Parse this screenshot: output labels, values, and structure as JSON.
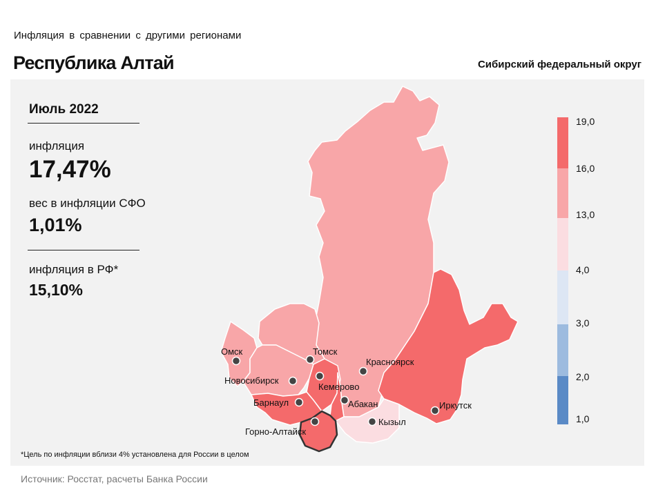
{
  "header": {
    "subtitle": "Инфляция  в сравнении  с другими  регионами",
    "region": "Республика Алтай",
    "district": "Сибирский федеральный округ"
  },
  "info": {
    "period": "Июль 2022",
    "inflation_label": "инфляция",
    "inflation_value": "17,47%",
    "weight_label": "вес в инфляции  СФО",
    "weight_value": "1,01%",
    "rf_label": "инфляция  в РФ*",
    "rf_value": "15,10%"
  },
  "legend": {
    "breaks": [
      "19,0",
      "16,0",
      "13,0",
      "4,0",
      "3,0",
      "2,0",
      "1,0"
    ],
    "colors": [
      "#f46a6b",
      "#f8a6a8",
      "#fbdde1",
      "#dde6f4",
      "#9dbbdf",
      "#5a8ac6"
    ]
  },
  "cities": {
    "omsk": "Омск",
    "tomsk": "Томск",
    "novosibirsk": "Новосибирск",
    "krasnoyarsk": "Красноярск",
    "kemerovo": "Кемерово",
    "barnaul": "Барнаул",
    "abakan": "Абакан",
    "irkutsk": "Иркутск",
    "kyzyl": "Кызыл",
    "gorno_altaysk": "Горно-Алтайск"
  },
  "region_colors": {
    "krasnoyarsk": "#f8a6a8",
    "irkutsk": "#f46a6b",
    "tomsk": "#f8a6a8",
    "omsk": "#f8a6a8",
    "novosibirsk": "#f8a6a8",
    "kemerovo": "#f46a6b",
    "altai_krai": "#f46a6b",
    "altai_rep": "#f46a6b",
    "khakassia": "#f46a6b",
    "tyva": "#fbdde1"
  },
  "footnote": "*Цель по инфляции вблизи 4% установлена для России в целом",
  "source": "Источник: Росстат, расчеты Банка России"
}
